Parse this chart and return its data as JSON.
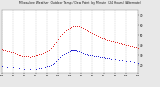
{
  "title": "Milwaukee Weather  Outdoor Temp / Dew Point  by Minute  (24 Hours) (Alternate)",
  "title2": "by Minute  ",
  "bg_color": "#e8e8e8",
  "plot_bg_color": "#ffffff",
  "grid_color": "#aaaaaa",
  "temp_color": "#dd0000",
  "dew_color": "#0000cc",
  "xlim": [
    0,
    1440
  ],
  "ylim": [
    12,
    75
  ],
  "ytick_positions": [
    20,
    30,
    40,
    50,
    60,
    70
  ],
  "ytick_labels": [
    "20",
    "30",
    "40",
    "50",
    "60",
    "70"
  ],
  "xtick_positions": [
    0,
    120,
    240,
    360,
    480,
    600,
    720,
    840,
    960,
    1080,
    1200,
    1320,
    1440
  ],
  "xtick_labels": [
    "12a",
    "2a",
    "4a",
    "6a",
    "8a",
    "10a",
    "12p",
    "2p",
    "4p",
    "6p",
    "8p",
    "10p",
    "12a"
  ],
  "temp_data": [
    [
      0,
      36
    ],
    [
      20,
      35
    ],
    [
      40,
      35
    ],
    [
      60,
      34
    ],
    [
      80,
      34
    ],
    [
      100,
      33
    ],
    [
      120,
      33
    ],
    [
      140,
      32
    ],
    [
      160,
      31
    ],
    [
      180,
      30
    ],
    [
      200,
      30
    ],
    [
      220,
      29
    ],
    [
      240,
      29
    ],
    [
      260,
      29
    ],
    [
      280,
      29
    ],
    [
      300,
      28
    ],
    [
      320,
      29
    ],
    [
      340,
      29
    ],
    [
      360,
      30
    ],
    [
      380,
      30
    ],
    [
      400,
      31
    ],
    [
      420,
      31
    ],
    [
      440,
      32
    ],
    [
      460,
      33
    ],
    [
      480,
      34
    ],
    [
      500,
      35
    ],
    [
      520,
      37
    ],
    [
      540,
      39
    ],
    [
      560,
      41
    ],
    [
      580,
      43
    ],
    [
      600,
      46
    ],
    [
      620,
      49
    ],
    [
      640,
      51
    ],
    [
      660,
      53
    ],
    [
      680,
      55
    ],
    [
      700,
      56
    ],
    [
      720,
      57
    ],
    [
      740,
      58
    ],
    [
      760,
      59
    ],
    [
      780,
      59
    ],
    [
      800,
      59
    ],
    [
      820,
      59
    ],
    [
      840,
      58
    ],
    [
      860,
      57
    ],
    [
      880,
      56
    ],
    [
      900,
      55
    ],
    [
      920,
      54
    ],
    [
      940,
      53
    ],
    [
      960,
      52
    ],
    [
      980,
      51
    ],
    [
      1000,
      50
    ],
    [
      1020,
      49
    ],
    [
      1040,
      48
    ],
    [
      1060,
      47
    ],
    [
      1080,
      47
    ],
    [
      1100,
      46
    ],
    [
      1120,
      45
    ],
    [
      1140,
      45
    ],
    [
      1160,
      44
    ],
    [
      1180,
      44
    ],
    [
      1200,
      43
    ],
    [
      1220,
      43
    ],
    [
      1240,
      42
    ],
    [
      1260,
      42
    ],
    [
      1280,
      41
    ],
    [
      1300,
      41
    ],
    [
      1320,
      40
    ],
    [
      1340,
      40
    ],
    [
      1360,
      39
    ],
    [
      1380,
      39
    ],
    [
      1400,
      38
    ],
    [
      1420,
      38
    ],
    [
      1440,
      37
    ]
  ],
  "dew_data": [
    [
      0,
      19
    ],
    [
      60,
      18
    ],
    [
      120,
      18
    ],
    [
      180,
      17
    ],
    [
      240,
      16
    ],
    [
      300,
      16
    ],
    [
      360,
      16
    ],
    [
      400,
      17
    ],
    [
      420,
      17
    ],
    [
      460,
      18
    ],
    [
      480,
      19
    ],
    [
      500,
      19
    ],
    [
      520,
      20
    ],
    [
      540,
      21
    ],
    [
      560,
      22
    ],
    [
      580,
      24
    ],
    [
      600,
      26
    ],
    [
      620,
      28
    ],
    [
      640,
      30
    ],
    [
      660,
      31
    ],
    [
      680,
      32
    ],
    [
      700,
      33
    ],
    [
      720,
      34
    ],
    [
      730,
      35
    ],
    [
      740,
      35
    ],
    [
      750,
      35
    ],
    [
      760,
      35
    ],
    [
      770,
      35
    ],
    [
      780,
      35
    ],
    [
      790,
      35
    ],
    [
      800,
      34
    ],
    [
      820,
      34
    ],
    [
      840,
      33
    ],
    [
      860,
      32
    ],
    [
      880,
      31
    ],
    [
      900,
      31
    ],
    [
      920,
      30
    ],
    [
      940,
      30
    ],
    [
      960,
      30
    ],
    [
      980,
      29
    ],
    [
      1000,
      29
    ],
    [
      1020,
      29
    ],
    [
      1040,
      28
    ],
    [
      1060,
      28
    ],
    [
      1080,
      28
    ],
    [
      1100,
      27
    ],
    [
      1120,
      27
    ],
    [
      1140,
      27
    ],
    [
      1160,
      26
    ],
    [
      1200,
      26
    ],
    [
      1240,
      25
    ],
    [
      1280,
      25
    ],
    [
      1320,
      24
    ],
    [
      1360,
      24
    ],
    [
      1400,
      23
    ],
    [
      1440,
      22
    ]
  ]
}
